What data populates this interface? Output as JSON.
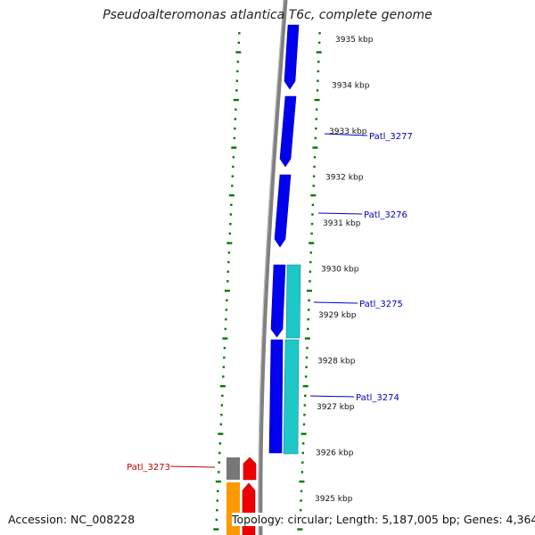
{
  "title": "Pseudoalteromonas atlantica T6c, complete genome",
  "accession_text": "Accession: NC_008228",
  "stats_text": "Topology: circular; Length: 5,187,005 bp; Genes: 4,364",
  "colors": {
    "backbone": "#808080",
    "forward_cds": "#0000ee",
    "cyan_feature": "#1ec8c8",
    "reverse_red": "#ee0000",
    "reverse_orange": "#ff9900",
    "reverse_gray": "#777777",
    "gc_ticks": "#007700",
    "label_blue": "#0000bb",
    "label_red": "#bb0000"
  },
  "scale_labels": [
    "3935 kbp",
    "3934 kbp",
    "3933 kbp",
    "3932 kbp",
    "3931 kbp",
    "3930 kbp",
    "3929 kbp",
    "3928 kbp",
    "3927 kbp",
    "3926 kbp",
    "3925 kbp"
  ],
  "gene_labels": [
    {
      "text": "Patl_3277",
      "strand": "forward"
    },
    {
      "text": "Patl_3276",
      "strand": "forward"
    },
    {
      "text": "Patl_3275",
      "strand": "forward"
    },
    {
      "text": "Patl_3274",
      "strand": "forward"
    },
    {
      "text": "Patl_3273",
      "strand": "reverse"
    }
  ]
}
